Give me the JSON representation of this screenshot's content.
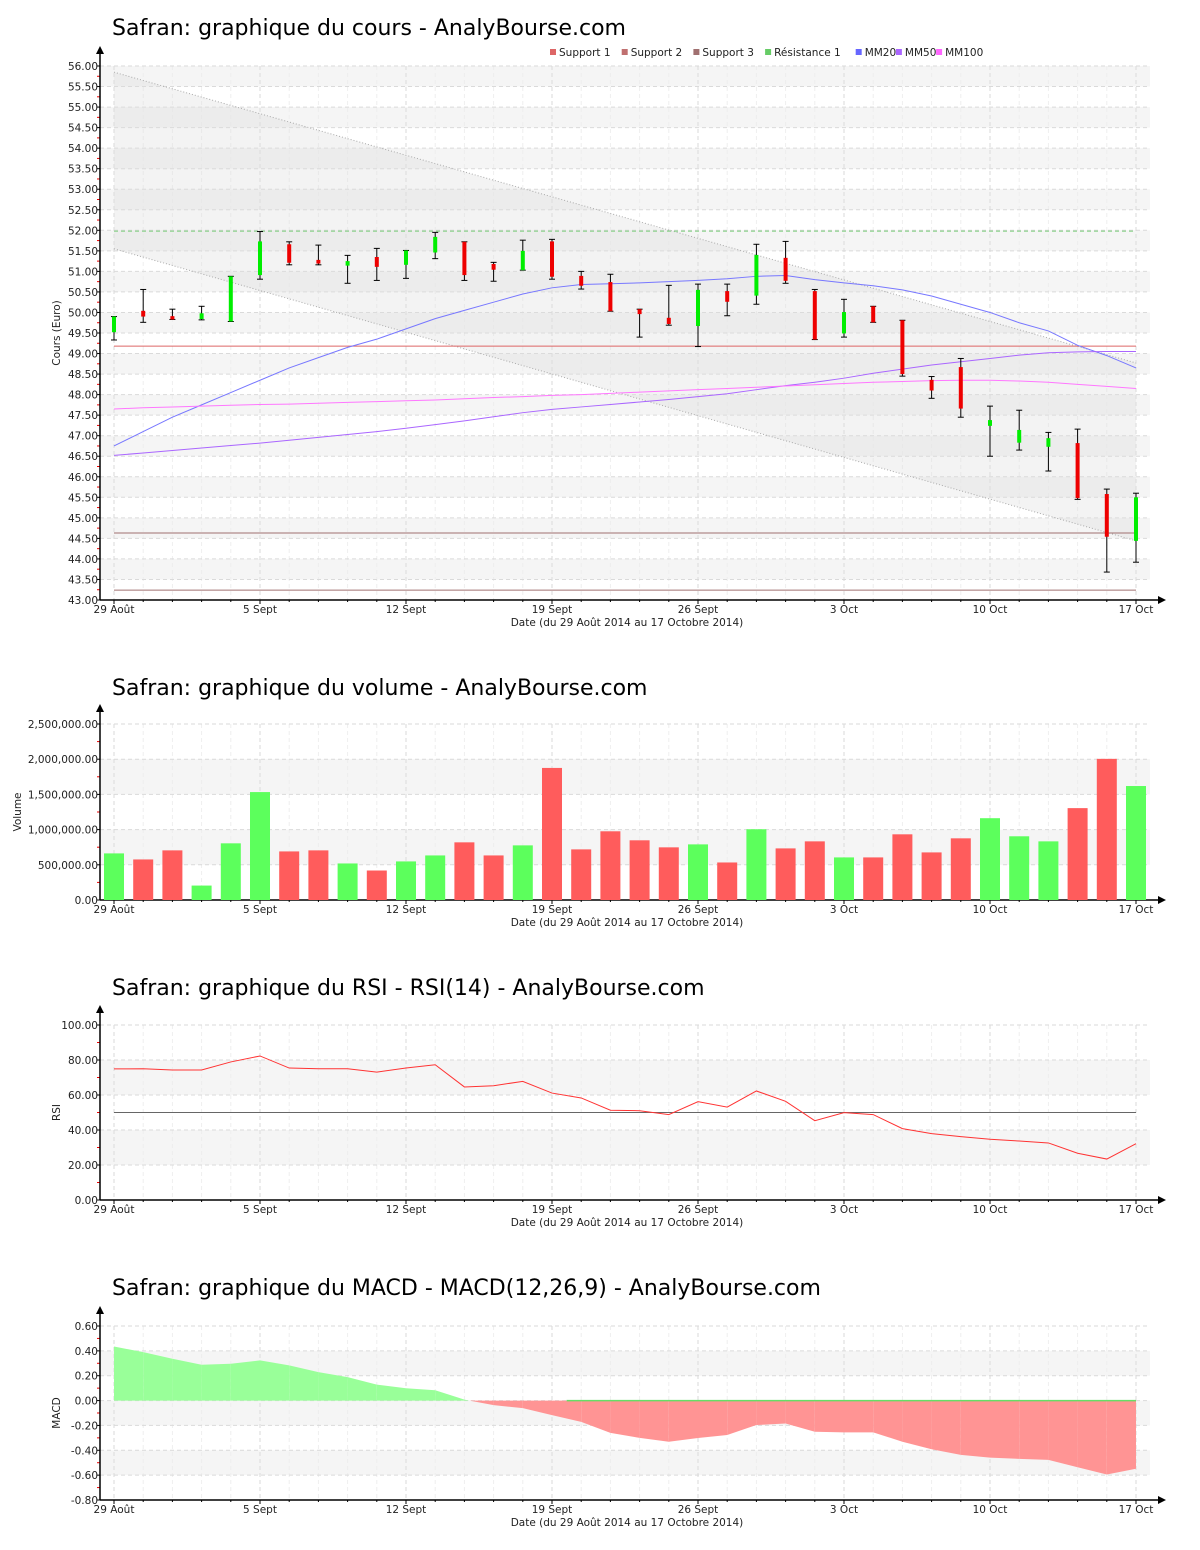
{
  "x_axis": {
    "tick_labels": [
      "29 Août",
      "5 Sept",
      "12 Sept",
      "19 Sept",
      "26 Sept",
      "3 Oct",
      "10 Oct",
      "17 Oct"
    ],
    "tick_days": [
      0,
      5,
      10,
      15,
      20,
      25,
      30,
      35
    ],
    "label": "Date (du 29 Août 2014 au 17 Octobre 2014)"
  },
  "chart_data": [
    {
      "type": "candlestick",
      "title": "Safran: graphique du cours - AnalyBourse.com",
      "ylabel": "Cours (Euro)",
      "ylim": [
        43,
        56
      ],
      "yticks": [
        "43.00",
        "43.50",
        "44.00",
        "44.50",
        "45.00",
        "45.50",
        "46.00",
        "46.50",
        "47.00",
        "47.50",
        "48.00",
        "48.50",
        "49.00",
        "49.50",
        "50.00",
        "50.50",
        "51.00",
        "51.50",
        "52.00",
        "52.50",
        "53.00",
        "53.50",
        "54.00",
        "54.50",
        "55.00",
        "55.50",
        "56.00"
      ],
      "legend": [
        {
          "label": "Support 1",
          "color": "#dd6666"
        },
        {
          "label": "Support 2",
          "color": "#c07070"
        },
        {
          "label": "Support 3",
          "color": "#a07070"
        },
        {
          "label": "Résistance 1",
          "color": "#66cc66"
        },
        {
          "label": "MM20",
          "color": "#6666ff"
        },
        {
          "label": "MM50",
          "color": "#aa66ff"
        },
        {
          "label": "MM100",
          "color": "#ff66ff"
        }
      ],
      "legend_position": "top-right",
      "ohlc": [
        [
          49.52,
          49.9,
          49.33,
          49.9
        ],
        [
          50.04,
          50.56,
          49.76,
          49.9
        ],
        [
          49.91,
          50.08,
          49.83,
          49.83
        ],
        [
          49.84,
          50.15,
          49.82,
          49.98
        ],
        [
          49.78,
          50.88,
          49.78,
          50.88
        ],
        [
          50.91,
          51.97,
          50.81,
          51.73
        ],
        [
          51.66,
          51.72,
          51.16,
          51.21
        ],
        [
          51.28,
          51.64,
          51.16,
          51.19
        ],
        [
          51.14,
          51.39,
          50.71,
          51.25
        ],
        [
          51.35,
          51.56,
          50.78,
          51.11
        ],
        [
          51.16,
          51.51,
          50.83,
          51.51
        ],
        [
          51.46,
          51.95,
          51.31,
          51.84
        ],
        [
          51.72,
          51.72,
          50.78,
          50.91
        ],
        [
          51.18,
          51.22,
          50.76,
          51.04
        ],
        [
          51.03,
          51.76,
          51.03,
          51.5
        ],
        [
          51.73,
          51.78,
          50.81,
          50.87
        ],
        [
          50.89,
          51.0,
          50.57,
          50.65
        ],
        [
          50.74,
          50.93,
          50.03,
          50.03
        ],
        [
          50.08,
          50.08,
          49.4,
          49.96
        ],
        [
          49.87,
          50.66,
          49.69,
          49.72
        ],
        [
          49.67,
          50.69,
          49.17,
          50.55
        ],
        [
          50.52,
          50.69,
          49.92,
          50.26
        ],
        [
          50.41,
          51.66,
          50.2,
          51.4
        ],
        [
          51.33,
          51.73,
          50.71,
          50.77
        ],
        [
          50.52,
          50.56,
          49.34,
          49.34
        ],
        [
          49.49,
          50.32,
          49.4,
          50.01
        ],
        [
          50.15,
          50.15,
          49.76,
          49.76
        ],
        [
          49.81,
          49.81,
          48.45,
          48.5
        ],
        [
          48.36,
          48.44,
          47.91,
          48.1
        ],
        [
          48.67,
          48.88,
          47.45,
          47.66
        ],
        [
          47.24,
          47.72,
          46.5,
          47.38
        ],
        [
          46.83,
          47.62,
          46.65,
          47.14
        ],
        [
          46.73,
          47.08,
          46.14,
          46.94
        ],
        [
          46.82,
          47.16,
          45.45,
          45.48
        ],
        [
          45.58,
          45.7,
          43.68,
          44.54
        ],
        [
          44.44,
          45.6,
          43.92,
          45.5
        ]
      ],
      "levels": {
        "support1": 49.18,
        "support2": 44.63,
        "support3": 43.24,
        "resistance1": 51.98
      },
      "trend_channel": {
        "upper": [
          55.85,
          48.77
        ],
        "lower": [
          51.55,
          44.44
        ]
      },
      "mm20": [
        46.75,
        47.1,
        47.45,
        47.75,
        48.05,
        48.35,
        48.65,
        48.9,
        49.15,
        49.35,
        49.6,
        49.85,
        50.05,
        50.25,
        50.45,
        50.6,
        50.68,
        50.7,
        50.72,
        50.75,
        50.78,
        50.82,
        50.88,
        50.9,
        50.8,
        50.72,
        50.65,
        50.55,
        50.4,
        50.2,
        50.0,
        49.75,
        49.55,
        49.2,
        48.95,
        48.65
      ],
      "mm50": [
        46.52,
        46.58,
        46.64,
        46.7,
        46.76,
        46.82,
        46.89,
        46.96,
        47.03,
        47.1,
        47.18,
        47.27,
        47.36,
        47.46,
        47.56,
        47.64,
        47.7,
        47.76,
        47.82,
        47.88,
        47.95,
        48.02,
        48.12,
        48.22,
        48.3,
        48.4,
        48.52,
        48.62,
        48.72,
        48.8,
        48.88,
        48.96,
        49.02,
        49.04,
        49.05,
        49.05
      ],
      "mm100": [
        47.65,
        47.68,
        47.7,
        47.72,
        47.74,
        47.76,
        47.77,
        47.79,
        47.81,
        47.83,
        47.85,
        47.87,
        47.9,
        47.93,
        47.95,
        47.98,
        48.0,
        48.03,
        48.06,
        48.09,
        48.12,
        48.15,
        48.18,
        48.21,
        48.24,
        48.27,
        48.3,
        48.32,
        48.34,
        48.35,
        48.35,
        48.33,
        48.3,
        48.25,
        48.2,
        48.15
      ],
      "colors": {
        "up": "#00ee00",
        "down": "#ee0000"
      }
    },
    {
      "type": "bar",
      "title": "Safran: graphique du volume - AnalyBourse.com",
      "ylabel": "Volume",
      "ylim": [
        0,
        2500000
      ],
      "yticks": [
        "0.00",
        "500,000.00",
        "1,000,000.00",
        "1,500,000.00",
        "2,000,000.00",
        "2,500,000.00"
      ],
      "values": [
        662000,
        576000,
        705000,
        205000,
        805000,
        1533000,
        690000,
        705000,
        519000,
        419000,
        548000,
        633000,
        819000,
        633000,
        776000,
        1876000,
        719000,
        976000,
        848000,
        748000,
        790000,
        533000,
        1005000,
        733000,
        833000,
        605000,
        605000,
        933000,
        676000,
        876000,
        1162000,
        905000,
        833000,
        1305000,
        2005000,
        1619000
      ],
      "up": [
        1,
        0,
        0,
        1,
        1,
        1,
        0,
        0,
        1,
        0,
        1,
        1,
        0,
        0,
        1,
        0,
        0,
        0,
        0,
        0,
        1,
        0,
        1,
        0,
        0,
        1,
        0,
        0,
        0,
        0,
        1,
        1,
        1,
        0,
        0,
        1
      ],
      "colors": {
        "up": "#5cff5c",
        "down": "#ff5c5c"
      }
    },
    {
      "type": "line",
      "title": "Safran: graphique du RSI - RSI(14) - AnalyBourse.com",
      "ylabel": "RSI",
      "ylim": [
        0,
        100
      ],
      "yticks": [
        "0.00",
        "20.00",
        "40.00",
        "60.00",
        "80.00",
        "100.00"
      ],
      "reference": 50,
      "values": [
        74.9,
        75,
        74.3,
        74.3,
        78.9,
        82.3,
        75.4,
        75,
        75,
        73.1,
        75.4,
        77.3,
        64.6,
        65.3,
        67.8,
        61.1,
        58.3,
        51.3,
        51,
        48.8,
        56.2,
        53.1,
        62.3,
        56.4,
        45.3,
        49.9,
        48.8,
        40.8,
        37.9,
        36.2,
        34.7,
        33.7,
        32.6,
        26.7,
        23.4,
        32.2
      ],
      "colors": {
        "line": "#ff3333",
        "reference": "#666666"
      }
    },
    {
      "type": "area",
      "title": "Safran: graphique du MACD - MACD(12,26,9) - AnalyBourse.com",
      "ylabel": "MACD",
      "ylim": [
        -0.8,
        0.6
      ],
      "yticks": [
        "-0.80",
        "-0.60",
        "-0.40",
        "-0.20",
        "0.00",
        "0.20",
        "0.40",
        "0.60"
      ],
      "values": [
        0.435,
        0.39,
        0.336,
        0.288,
        0.296,
        0.323,
        0.283,
        0.229,
        0.189,
        0.128,
        0.099,
        0.083,
        0.008,
        -0.037,
        -0.061,
        -0.117,
        -0.171,
        -0.26,
        -0.3,
        -0.331,
        -0.301,
        -0.277,
        -0.197,
        -0.184,
        -0.251,
        -0.256,
        -0.256,
        -0.331,
        -0.392,
        -0.437,
        -0.459,
        -0.469,
        -0.477,
        -0.536,
        -0.595,
        -0.549
      ],
      "colors": {
        "positive": "#99ff99",
        "negative": "#ff9494"
      }
    }
  ]
}
